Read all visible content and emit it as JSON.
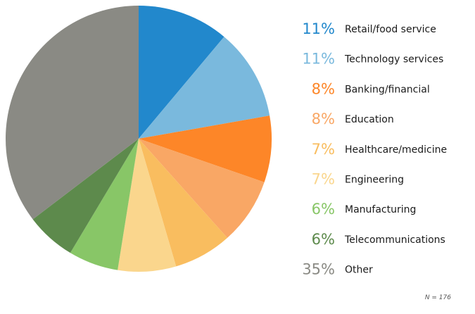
{
  "chart_data": {
    "type": "pie",
    "start_angle_deg": 0,
    "direction": "clockwise",
    "legend_placement": "right",
    "slices": [
      {
        "label": "Retail/food service",
        "percent_label": "11%",
        "value": 11,
        "color": "#2288cc"
      },
      {
        "label": "Technology services",
        "percent_label": "11%",
        "value": 11,
        "color": "#7ab9dd"
      },
      {
        "label": "Banking/financial",
        "percent_label": "8%",
        "value": 8,
        "color": "#fd8628"
      },
      {
        "label": "Education",
        "percent_label": "8%",
        "value": 8,
        "color": "#f9a765"
      },
      {
        "label": "Healthcare/medicine",
        "percent_label": "7%",
        "value": 7,
        "color": "#f9bd5f"
      },
      {
        "label": "Engineering",
        "percent_label": "7%",
        "value": 7,
        "color": "#fad68d"
      },
      {
        "label": "Manufacturing",
        "percent_label": "6%",
        "value": 6,
        "color": "#88c667"
      },
      {
        "label": "Telecommunications",
        "percent_label": "6%",
        "value": 6,
        "color": "#5d8a4c"
      },
      {
        "label": "Other",
        "percent_label": "35%",
        "value": 35,
        "color": "#8a8a84"
      }
    ],
    "note": "N = 176"
  }
}
